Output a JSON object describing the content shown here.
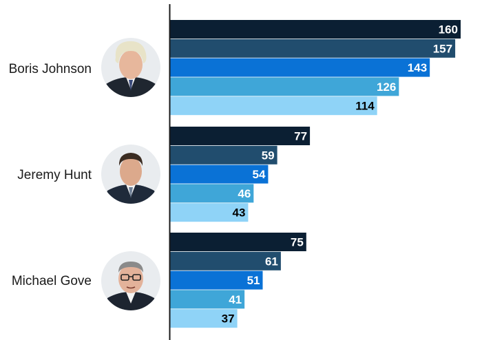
{
  "chart_data": {
    "type": "bar",
    "orientation": "horizontal",
    "categories": [
      "Boris Johnson",
      "Jeremy Hunt",
      "Michael Gove"
    ],
    "series": [
      {
        "values": [
          160,
          77,
          75
        ],
        "color": "#0b1f33"
      },
      {
        "values": [
          157,
          59,
          61
        ],
        "color": "#214d6e"
      },
      {
        "values": [
          143,
          54,
          51
        ],
        "color": "#0a72d6"
      },
      {
        "values": [
          126,
          46,
          41
        ],
        "color": "#3fa6d8"
      },
      {
        "values": [
          114,
          43,
          37
        ],
        "color": "#8fd3f7"
      }
    ],
    "value_label_colors": [
      "#ffffff",
      "#ffffff",
      "#ffffff",
      "#ffffff",
      "#000000"
    ],
    "xlim": [
      0,
      160
    ],
    "grid": false,
    "legend": "none",
    "icons": [
      "portrait-boris-johnson",
      "portrait-jeremy-hunt",
      "portrait-michael-gove"
    ]
  }
}
